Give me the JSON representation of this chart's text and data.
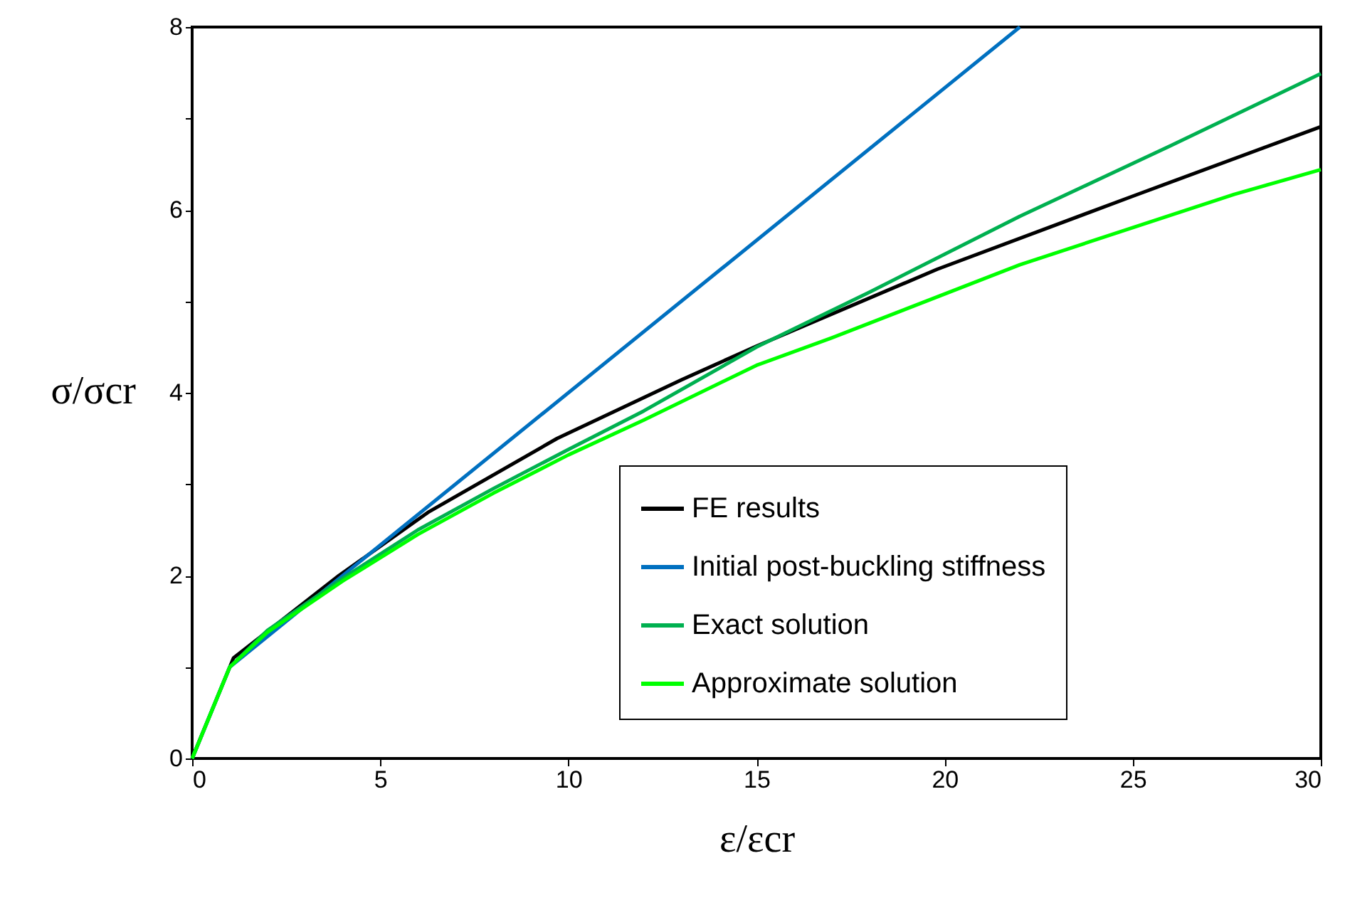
{
  "chart_data": {
    "type": "line",
    "xlabel": "ε/εcr",
    "ylabel": "σ/σcr",
    "xlim": [
      0,
      30
    ],
    "xticks": [
      0,
      5,
      10,
      15,
      20,
      25,
      30
    ],
    "ylim": [
      0,
      8
    ],
    "yticks": [
      0,
      {
        "value": 1,
        "label": null
      },
      2,
      {
        "value": 3,
        "label": null
      },
      4,
      {
        "value": 5,
        "label": null
      },
      6,
      {
        "value": 7,
        "label": null
      },
      8
    ],
    "grid": false,
    "legend": "bottom right",
    "marker": "none",
    "line_style": "solid",
    "series": [
      {
        "name": "FE results",
        "color": "#000000",
        "x": [
          0,
          1.1,
          3.9,
          6.3,
          9.7,
          13,
          15,
          19.8,
          25,
          30
        ],
        "values": [
          0,
          1.1,
          2.0,
          2.7,
          3.5,
          4.14,
          4.51,
          5.35,
          6.15,
          6.91
        ]
      },
      {
        "name": "Initial post-buckling stiffness",
        "color": "#0070c0",
        "x": [
          0,
          1,
          22
        ],
        "values": [
          0,
          1,
          8
        ]
      },
      {
        "name": "Exact solution",
        "color": "#00b050",
        "x": [
          0,
          1,
          2,
          4,
          6,
          8,
          10,
          12,
          15,
          18,
          22,
          26,
          30
        ],
        "values": [
          0,
          1,
          1.4,
          1.97,
          2.5,
          2.95,
          3.38,
          3.8,
          4.5,
          5.1,
          5.93,
          6.7,
          7.49
        ]
      },
      {
        "name": "Approximate solution",
        "color": "#00ff00",
        "x": [
          0,
          1,
          2,
          4,
          6,
          8,
          10,
          12,
          15,
          17,
          22,
          27.7,
          30
        ],
        "values": [
          0,
          1,
          1.38,
          1.94,
          2.45,
          2.9,
          3.32,
          3.7,
          4.3,
          4.6,
          5.4,
          6.17,
          6.44
        ]
      }
    ]
  }
}
